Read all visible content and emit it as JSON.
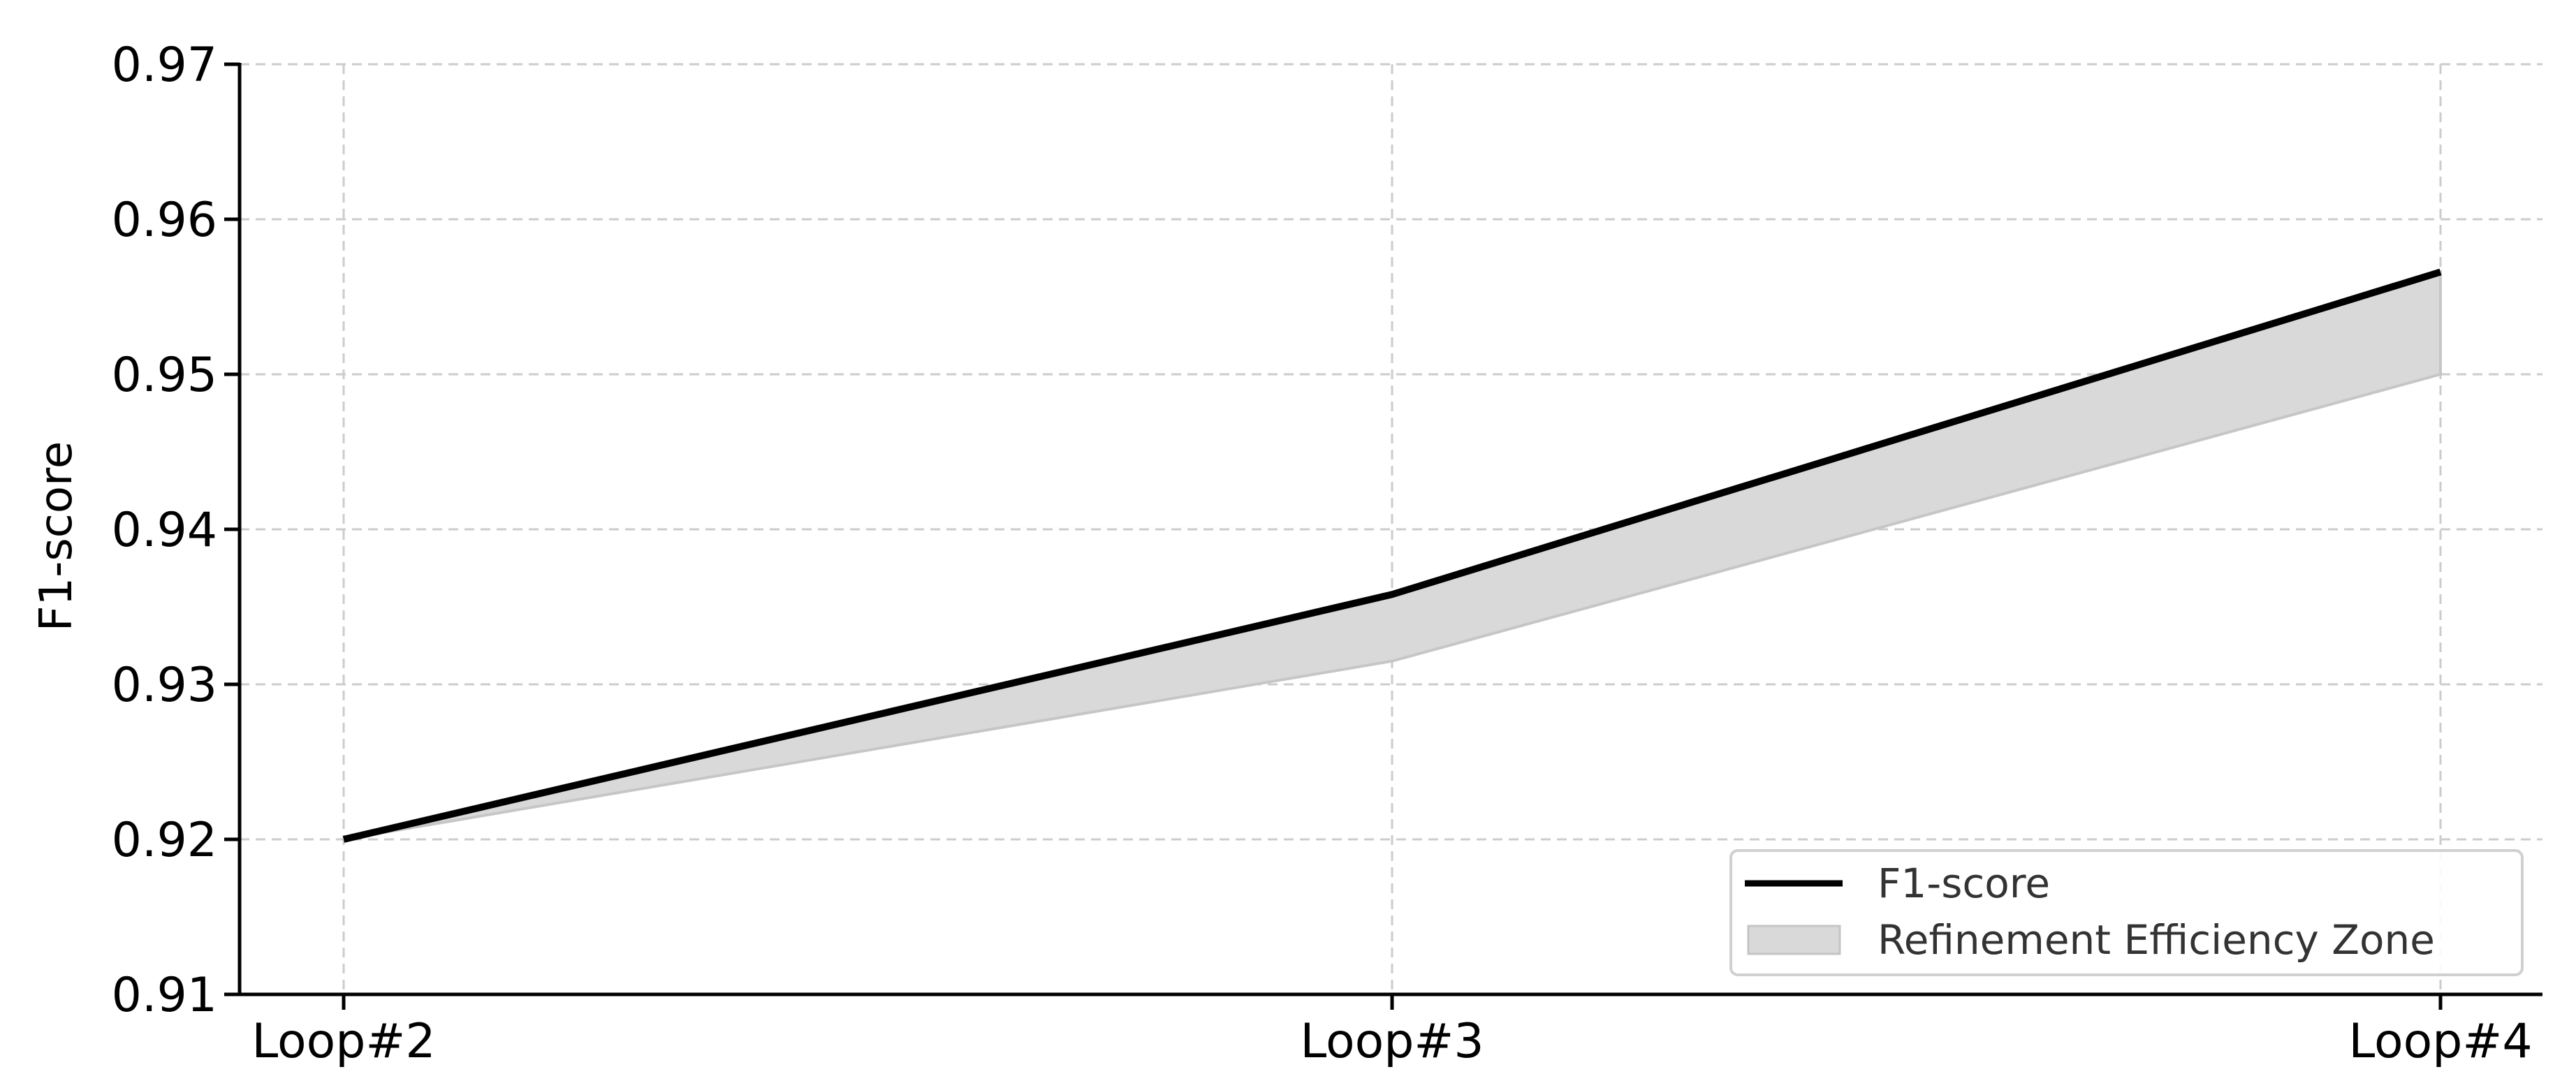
{
  "chart_data": {
    "type": "line",
    "title": "",
    "xlabel": "",
    "ylabel": "F1-score",
    "categories": [
      "Loop#2",
      "Loop#3",
      "Loop#4"
    ],
    "ylim": [
      0.91,
      0.97
    ],
    "yticks": [
      0.91,
      0.92,
      0.93,
      0.94,
      0.95,
      0.96,
      0.97
    ],
    "ytick_labels": [
      "0.91",
      "0.92",
      "0.93",
      "0.94",
      "0.95",
      "0.96",
      "0.97"
    ],
    "grid": true,
    "legend_position": "bottom-right",
    "series": [
      {
        "name": "F1-score",
        "type": "line",
        "values": [
          0.92,
          0.9358,
          0.9566
        ],
        "color": "#000000"
      }
    ],
    "band": {
      "name": "Refinement Efficiency Zone",
      "type": "area",
      "upper": [
        0.92,
        0.9358,
        0.9566
      ],
      "lower": [
        0.92,
        0.9315,
        0.95
      ],
      "color": "#d9d9d9"
    }
  }
}
